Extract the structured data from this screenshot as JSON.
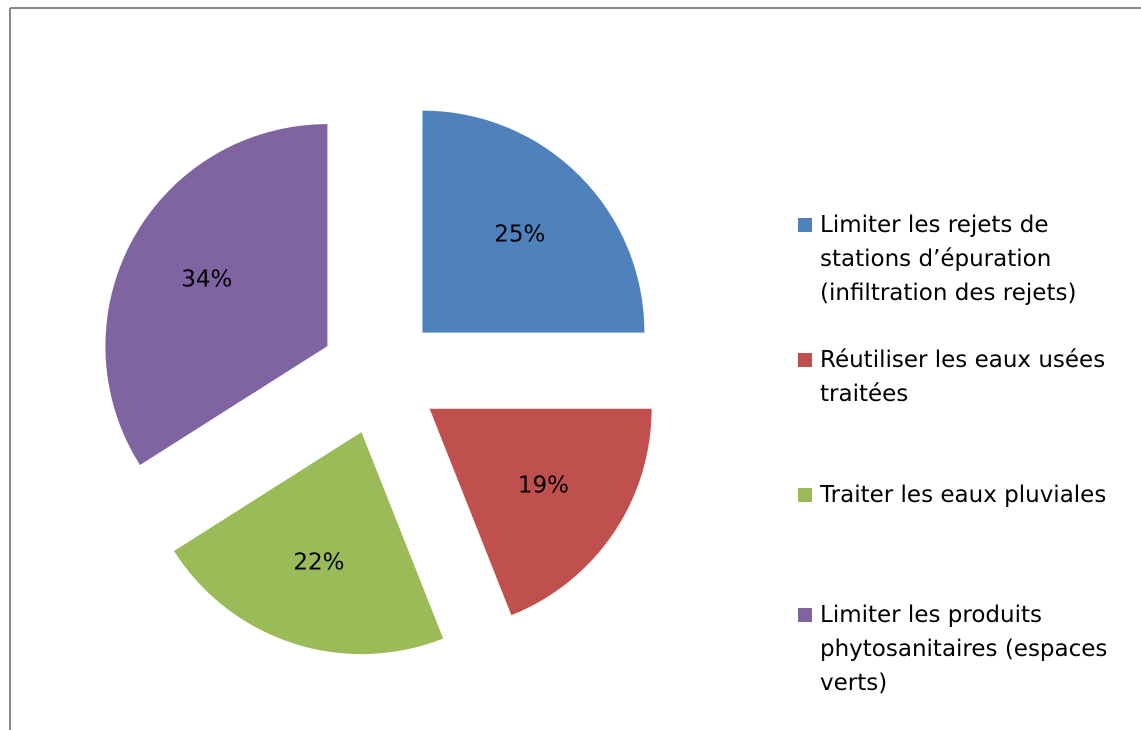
{
  "chart_data": {
    "type": "pie",
    "categories": [
      "Limiter les rejets de stations d’épuration (infiltration des rejets)",
      "Réutiliser les eaux usées traitées",
      "Traiter les eaux pluviales",
      "Limiter les produits phytosanitaires (espaces verts)"
    ],
    "values": [
      25,
      19,
      22,
      34
    ],
    "value_labels": [
      "25%",
      "19%",
      "22%",
      "34%"
    ],
    "colors": [
      "#4f81bd",
      "#c0504d",
      "#9bbb59",
      "#8064a2"
    ],
    "legend": "right"
  }
}
